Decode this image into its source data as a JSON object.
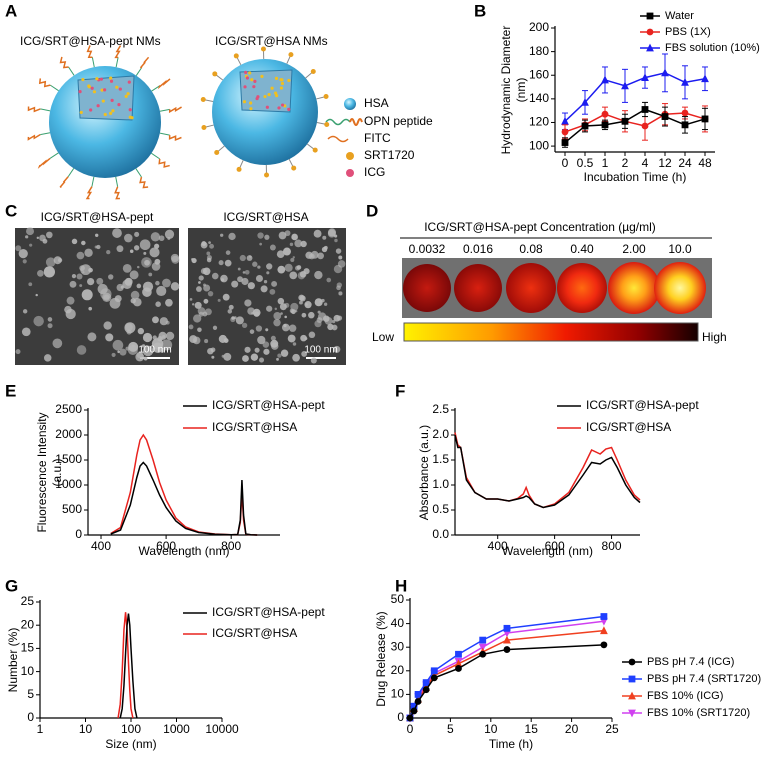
{
  "panel_labels": [
    "A",
    "B",
    "C",
    "D",
    "E",
    "F",
    "G",
    "H"
  ],
  "illustration": {
    "titles": [
      "ICG/SRT@HSA-pept NMs",
      "ICG/SRT@HSA NMs"
    ],
    "legend": [
      "HSA",
      "OPN peptide",
      "FITC",
      "SRT1720",
      "ICG"
    ]
  },
  "micrographs": {
    "titles": [
      "ICG/SRT@HSA-pept",
      "ICG/SRT@HSA"
    ],
    "scale_bar": "100 nm"
  },
  "imaging": {
    "title": "ICG/SRT@HSA-pept Concentration (µg/ml)",
    "concentrations": [
      "0.0032",
      "0.016",
      "0.08",
      "0.40",
      "2.00",
      "10.0"
    ],
    "scale_low": "Low",
    "scale_high": "High"
  },
  "chart_data": [
    {
      "type": "line",
      "ylabel": [
        "Hydrodynamic Diameter",
        "(nm)"
      ],
      "xlabel": "Incubation Time (h)",
      "categories": [
        0,
        0.5,
        1,
        2,
        4,
        12,
        24,
        48
      ],
      "ylim": [
        95,
        200
      ],
      "yticks": [
        100,
        120,
        140,
        160,
        180,
        200
      ],
      "legend": "upper right",
      "series": [
        {
          "name": "Water",
          "color": "#000000",
          "marker": "square",
          "values": [
            103,
            117,
            118,
            121,
            131,
            125,
            118,
            123
          ],
          "errors": [
            4,
            5,
            4,
            6,
            6,
            8,
            7,
            9
          ]
        },
        {
          "name": "PBS (1X)",
          "color": "#e8231f",
          "marker": "circle",
          "values": [
            112,
            118,
            127,
            121,
            117,
            127,
            128,
            123
          ],
          "errors": [
            6,
            5,
            6,
            9,
            12,
            9,
            5,
            11
          ]
        },
        {
          "name": "FBS solution (10%)",
          "color": "#1c1cf0",
          "marker": "triangle",
          "values": [
            121,
            137,
            156,
            151,
            158,
            162,
            154,
            157
          ],
          "errors": [
            7,
            10,
            11,
            14,
            9,
            16,
            14,
            10
          ]
        }
      ]
    },
    {
      "type": "line",
      "ylabel": [
        "Fluorescence Intensity",
        "(a.u.)"
      ],
      "xlabel": "Wavelength (nm)",
      "xlim": [
        360,
        950
      ],
      "xticks": [
        400,
        600,
        800
      ],
      "ylim": [
        0,
        2500
      ],
      "yticks": [
        0,
        500,
        1000,
        1500,
        2000,
        2500
      ],
      "legend": "upper right",
      "series": [
        {
          "name": "ICG/SRT@HSA-pept",
          "color": "#000000",
          "x": [
            430,
            460,
            490,
            510,
            520,
            530,
            540,
            560,
            580,
            600,
            630,
            660,
            700,
            750,
            800,
            820,
            828,
            833,
            838,
            845,
            860,
            880
          ],
          "values": [
            20,
            100,
            600,
            1150,
            1380,
            1450,
            1380,
            1100,
            800,
            550,
            280,
            130,
            50,
            15,
            5,
            10,
            300,
            1100,
            400,
            20,
            5,
            0
          ]
        },
        {
          "name": "ICG/SRT@HSA",
          "color": "#e8231f",
          "x": [
            430,
            460,
            490,
            510,
            520,
            530,
            540,
            560,
            580,
            600,
            630,
            660,
            700,
            750,
            800,
            820,
            828,
            833,
            838,
            845,
            860,
            880
          ],
          "values": [
            30,
            150,
            850,
            1600,
            1900,
            2000,
            1900,
            1500,
            1050,
            700,
            340,
            160,
            60,
            20,
            5,
            10,
            250,
            850,
            300,
            15,
            5,
            0
          ]
        }
      ]
    },
    {
      "type": "line",
      "ylabel": "Absorbance (a.u.)",
      "xlabel": "Wavelength (nm)",
      "xlim": [
        250,
        900
      ],
      "xticks": [
        400,
        600,
        800
      ],
      "ylim": [
        0,
        2.5
      ],
      "yticks": [
        {
          "value": 0,
          "label": "0.0"
        },
        0.5,
        {
          "value": 1,
          "label": "1.0"
        },
        1.5,
        {
          "value": 2,
          "label": "2.0"
        },
        2.5
      ],
      "legend": "upper right",
      "series": [
        {
          "name": "ICG/SRT@HSA-pept",
          "color": "#000000",
          "x": [
            250,
            260,
            270,
            290,
            320,
            360,
            400,
            440,
            470,
            490,
            500,
            510,
            530,
            560,
            600,
            650,
            700,
            730,
            760,
            780,
            800,
            820,
            850,
            880,
            900
          ],
          "values": [
            2.0,
            1.75,
            1.75,
            1.1,
            0.85,
            0.72,
            0.72,
            0.68,
            0.72,
            0.75,
            0.78,
            0.75,
            0.62,
            0.55,
            0.6,
            0.8,
            1.2,
            1.45,
            1.42,
            1.5,
            1.55,
            1.35,
            1.0,
            0.75,
            0.65
          ]
        },
        {
          "name": "ICG/SRT@HSA",
          "color": "#e8231f",
          "x": [
            250,
            260,
            270,
            290,
            320,
            360,
            400,
            440,
            470,
            490,
            500,
            510,
            530,
            560,
            600,
            650,
            700,
            730,
            760,
            780,
            800,
            820,
            850,
            880,
            900
          ],
          "values": [
            2.05,
            1.8,
            1.75,
            1.15,
            0.85,
            0.72,
            0.72,
            0.68,
            0.73,
            0.82,
            0.95,
            0.8,
            0.62,
            0.55,
            0.62,
            0.85,
            1.35,
            1.7,
            1.62,
            1.72,
            1.75,
            1.5,
            1.1,
            0.8,
            0.7
          ]
        }
      ]
    },
    {
      "type": "line",
      "ylabel": "Number (%)",
      "xlabel": "Size (nm)",
      "xlog": true,
      "xlim": [
        1,
        10000
      ],
      "xticks": [
        1,
        10,
        100,
        1000,
        10000
      ],
      "ylim": [
        0,
        25
      ],
      "yticks": [
        0,
        5,
        10,
        15,
        20,
        25
      ],
      "legend": "upper right",
      "series": [
        {
          "name": "ICG/SRT@HSA-pept",
          "color": "#000000",
          "x": [
            58,
            64,
            70,
            76,
            82,
            88,
            94,
            100,
            110,
            122,
            135
          ],
          "values": [
            0,
            2,
            7,
            14,
            20,
            22.5,
            20,
            15,
            8,
            2,
            0
          ]
        },
        {
          "name": "ICG/SRT@HSA",
          "color": "#e8231f",
          "x": [
            52,
            58,
            64,
            70,
            76,
            82,
            88,
            94,
            100,
            110
          ],
          "values": [
            0,
            3,
            10,
            19,
            22.8,
            19,
            12,
            6,
            2,
            0
          ]
        }
      ]
    },
    {
      "type": "line",
      "ylabel": "Drug Release (%)",
      "xlabel": "Time (h)",
      "x": [
        0,
        0.5,
        1,
        2,
        3,
        6,
        9,
        12,
        24
      ],
      "xlim": [
        0,
        25
      ],
      "xticks": [
        0,
        5,
        10,
        15,
        20,
        25
      ],
      "ylim": [
        0,
        50
      ],
      "yticks": [
        0,
        10,
        20,
        30,
        40,
        50
      ],
      "legend": "right",
      "series": [
        {
          "name": "PBS pH 7.4 (ICG)",
          "color": "#000000",
          "marker": "circle",
          "values": [
            0,
            3,
            7,
            12,
            17,
            21,
            27,
            29,
            31
          ]
        },
        {
          "name": "PBS pH 7.4 (SRT1720)",
          "color": "#1f3fff",
          "marker": "square",
          "values": [
            0,
            5,
            10,
            15,
            20,
            27,
            33,
            38,
            43
          ]
        },
        {
          "name": "FBS 10% (ICG)",
          "color": "#f04020",
          "marker": "triangle",
          "values": [
            0,
            4,
            8,
            13,
            18,
            23,
            28,
            33,
            37
          ]
        },
        {
          "name": "FBS 10% (SRT1720)",
          "color": "#d040f0",
          "marker": "triangle-down",
          "values": [
            0,
            4,
            9,
            14,
            19,
            24,
            30,
            36,
            41
          ]
        }
      ]
    }
  ]
}
